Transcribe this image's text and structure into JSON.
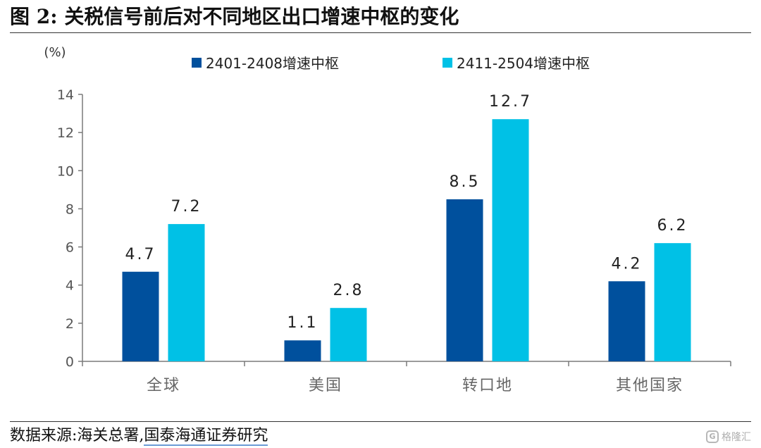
{
  "header": {
    "title": "图 2:  关税信号前后对不同地区出口增速中枢的变化"
  },
  "footer": {
    "source_prefix": "数据来源:海关总署,",
    "source_org": "国泰海通证券研究",
    "watermark_text": "格隆汇",
    "watermark_icon": "gelonghui-logo-icon"
  },
  "colors": {
    "series1": "#00509d",
    "series2": "#00c1e6",
    "axis": "#7a7a7a"
  },
  "chart_data": {
    "type": "bar",
    "unit_label": "(%)",
    "categories": [
      "全球",
      "美国",
      "转口地",
      "其他国家"
    ],
    "series": [
      {
        "name": "2401-2408增速中枢",
        "values": [
          4.7,
          1.1,
          8.5,
          4.2
        ]
      },
      {
        "name": "2411-2504增速中枢",
        "values": [
          7.2,
          2.8,
          12.7,
          6.2
        ]
      }
    ],
    "ylim": [
      0,
      14
    ],
    "yticks": [
      0,
      2,
      4,
      6,
      8,
      10,
      12,
      14
    ],
    "grid": false,
    "legend_position": "top"
  }
}
